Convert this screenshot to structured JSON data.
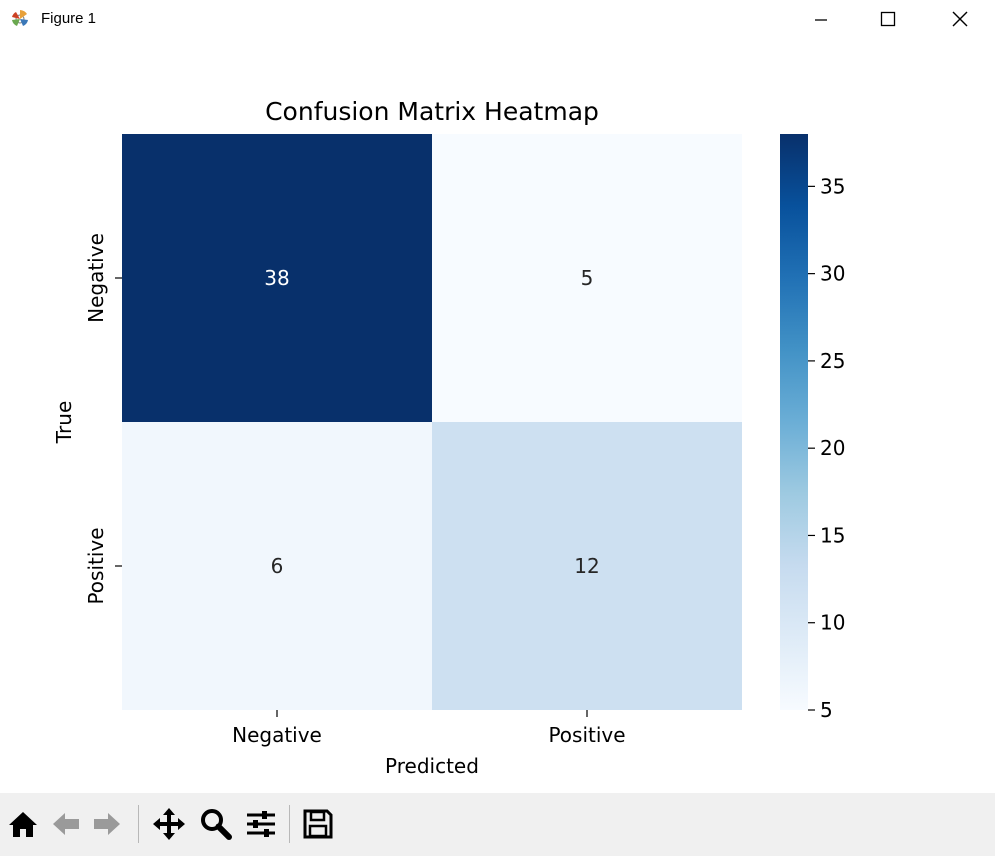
{
  "window": {
    "title": "Figure 1",
    "controls": [
      "minimize-icon",
      "maximize-icon",
      "close-icon"
    ]
  },
  "colors": {
    "cmap_low": "#f7fbff",
    "cmap_high": "#08306b",
    "text_light": "#ffffff",
    "text_dark": "#262626"
  },
  "chart_data": {
    "type": "heatmap",
    "title": "Confusion Matrix Heatmap",
    "xlabel": "Predicted",
    "ylabel": "True",
    "x_categories": [
      "Negative",
      "Positive"
    ],
    "y_categories": [
      "Negative",
      "Positive"
    ],
    "values": [
      [
        38,
        5
      ],
      [
        6,
        12
      ]
    ],
    "annotations": [
      "38",
      "5",
      "6",
      "12"
    ],
    "colormap": "Blues",
    "colorbar": {
      "vmin": 5,
      "vmax": 38,
      "ticks": [
        5,
        10,
        15,
        20,
        25,
        30,
        35
      ],
      "tick_labels": [
        "5",
        "10",
        "15",
        "20",
        "25",
        "30",
        "35"
      ]
    },
    "grid": false
  },
  "toolbar": {
    "tools": [
      {
        "name": "home-icon",
        "label": "Home"
      },
      {
        "name": "back-icon",
        "label": "Back"
      },
      {
        "name": "forward-icon",
        "label": "Forward"
      },
      {
        "name": "pan-icon",
        "label": "Pan"
      },
      {
        "name": "zoom-icon",
        "label": "Zoom"
      },
      {
        "name": "configure-subplots-icon",
        "label": "Configure subplots"
      },
      {
        "name": "save-icon",
        "label": "Save"
      }
    ]
  }
}
